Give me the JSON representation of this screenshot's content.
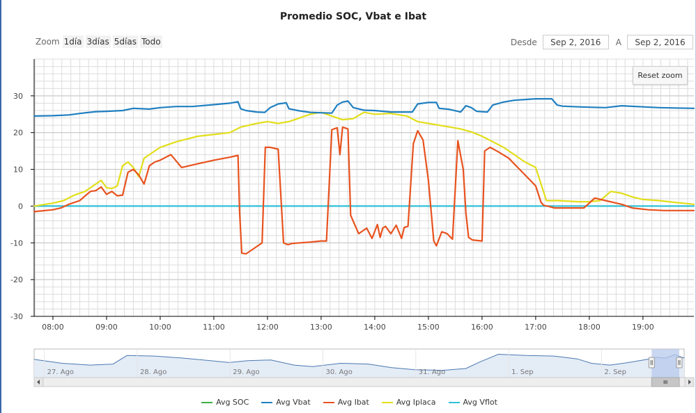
{
  "chart_data": {
    "type": "line",
    "title": "Promedio SOC, Vbat e Ibat",
    "xlabel": "",
    "ylabel": "",
    "x_ticks": [
      "08:00",
      "09:00",
      "10:00",
      "11:00",
      "12:00",
      "13:00",
      "14:00",
      "15:00",
      "16:00",
      "17:00",
      "18:00",
      "19:00"
    ],
    "x_tick_values": [
      8,
      9,
      10,
      11,
      12,
      13,
      14,
      15,
      16,
      17,
      18,
      19
    ],
    "xlim": [
      7.65,
      19.95
    ],
    "ylim": [
      -30,
      40
    ],
    "y_ticks": [
      -30,
      -20,
      -10,
      0,
      10,
      20,
      30
    ],
    "grid": true,
    "legend_position": "bottom",
    "series": [
      {
        "name": "Avg SOC",
        "color": "#3cb043",
        "x": [],
        "y": []
      },
      {
        "name": "Avg Vbat",
        "color": "#1f7fc0",
        "x": [
          7.65,
          8.0,
          8.3,
          8.5,
          8.8,
          9.0,
          9.3,
          9.5,
          9.8,
          10.0,
          10.3,
          10.6,
          11.0,
          11.3,
          11.45,
          11.5,
          11.6,
          11.8,
          11.95,
          12.05,
          12.2,
          12.35,
          12.4,
          12.6,
          12.8,
          13.0,
          13.2,
          13.3,
          13.4,
          13.5,
          13.6,
          13.8,
          14.0,
          14.3,
          14.5,
          14.7,
          14.8,
          15.0,
          15.15,
          15.2,
          15.4,
          15.6,
          15.7,
          15.8,
          15.9,
          16.1,
          16.2,
          16.4,
          16.6,
          17.0,
          17.3,
          17.4,
          17.5,
          17.8,
          18.0,
          18.3,
          18.6,
          19.0,
          19.3,
          19.6,
          19.95
        ],
        "y": [
          24.5,
          24.6,
          24.8,
          25.2,
          25.7,
          25.8,
          26,
          26.6,
          26.4,
          26.8,
          27.1,
          27.1,
          27.6,
          28,
          28.4,
          26.5,
          26,
          25.6,
          25.5,
          26.8,
          27.8,
          28.1,
          26.5,
          25.9,
          25.5,
          25.4,
          25.3,
          27.5,
          28.3,
          28.6,
          26.8,
          26.1,
          26,
          25.6,
          25.6,
          25.6,
          27.8,
          28.2,
          28.2,
          26.6,
          26.3,
          25.6,
          27.3,
          26.8,
          25.8,
          25.6,
          27.5,
          28.3,
          28.8,
          29.2,
          29.2,
          27.5,
          27.2,
          27,
          26.9,
          26.8,
          27.3,
          27,
          26.8,
          26.7,
          26.6
        ]
      },
      {
        "name": "Avg Ibat",
        "color": "#e8521e",
        "x": [
          7.65,
          8.0,
          8.15,
          8.3,
          8.5,
          8.7,
          8.8,
          8.9,
          9.0,
          9.1,
          9.2,
          9.3,
          9.4,
          9.5,
          9.6,
          9.7,
          9.8,
          9.9,
          10.0,
          10.2,
          10.4,
          10.7,
          11.0,
          11.3,
          11.45,
          11.48,
          11.52,
          11.6,
          11.8,
          11.9,
          11.96,
          12.05,
          12.2,
          12.3,
          12.38,
          12.45,
          12.6,
          12.8,
          13.0,
          13.1,
          13.2,
          13.3,
          13.35,
          13.4,
          13.5,
          13.55,
          13.7,
          13.85,
          13.95,
          14.05,
          14.1,
          14.15,
          14.2,
          14.3,
          14.4,
          14.5,
          14.55,
          14.62,
          14.72,
          14.8,
          14.9,
          15.0,
          15.1,
          15.15,
          15.25,
          15.35,
          15.45,
          15.55,
          15.65,
          15.7,
          15.75,
          15.82,
          16.0,
          16.05,
          16.15,
          16.3,
          16.5,
          16.7,
          16.9,
          17.0,
          17.1,
          17.15,
          17.22,
          17.35,
          17.6,
          17.9,
          18.1,
          18.3,
          18.6,
          18.8,
          19.1,
          19.4,
          19.6,
          19.95
        ],
        "y": [
          -1.5,
          -1,
          -0.5,
          0.5,
          1.5,
          4,
          4.2,
          5.2,
          3.2,
          4,
          2.8,
          3,
          9.2,
          10,
          8.5,
          6,
          11,
          12,
          12.5,
          14,
          10.5,
          11.5,
          12.5,
          13.3,
          13.8,
          -1.5,
          -12.8,
          -13,
          -11,
          -10,
          16,
          16,
          15.5,
          -10,
          -10.5,
          -10.2,
          -10,
          -9.8,
          -9.5,
          -9.5,
          20.8,
          21.3,
          14,
          21.5,
          21,
          -2.5,
          -7.5,
          -6,
          -8.8,
          -5,
          -8.5,
          -6,
          -5.5,
          -7.5,
          -5.2,
          -8.8,
          -5.8,
          -5.5,
          17,
          20.5,
          18,
          7,
          -9.5,
          -10.8,
          -7,
          -7.5,
          -9,
          17.8,
          10,
          -2,
          -8.5,
          -9.2,
          -9.5,
          15,
          16,
          14.8,
          13,
          10,
          7,
          5.5,
          1,
          0.2,
          0,
          -0.5,
          -0.5,
          -0.5,
          2.2,
          1.5,
          0.5,
          -0.5,
          -1,
          -1.2,
          -1.2,
          -1.2
        ]
      },
      {
        "name": "Avg Iplaca",
        "color": "#e2de1a",
        "x": [
          7.65,
          8.0,
          8.2,
          8.4,
          8.6,
          8.8,
          8.9,
          9.0,
          9.1,
          9.2,
          9.3,
          9.4,
          9.5,
          9.6,
          9.7,
          9.8,
          9.9,
          10.0,
          10.3,
          10.7,
          11.0,
          11.3,
          11.5,
          11.8,
          12.0,
          12.2,
          12.4,
          12.6,
          12.8,
          13.0,
          13.2,
          13.4,
          13.6,
          13.8,
          14.0,
          14.3,
          14.6,
          14.8,
          15.0,
          15.2,
          15.6,
          15.8,
          16.0,
          16.2,
          16.4,
          16.6,
          16.8,
          17.0,
          17.2,
          17.4,
          17.8,
          18.0,
          18.2,
          18.4,
          18.6,
          18.8,
          19.0,
          19.3,
          19.6,
          19.95
        ],
        "y": [
          0,
          0.8,
          1.5,
          3,
          4,
          6,
          7,
          5,
          4.8,
          5.5,
          11,
          12,
          10.5,
          8,
          13,
          14,
          15,
          16,
          17.5,
          19,
          19.5,
          20,
          21.5,
          22.5,
          23,
          22.5,
          23,
          24,
          25,
          25.5,
          24.5,
          23.5,
          23.8,
          25.5,
          25,
          25.2,
          24.5,
          23,
          22.5,
          22,
          21,
          20.2,
          19,
          17.5,
          16,
          14,
          12,
          10.5,
          1.5,
          1.5,
          1.2,
          1.2,
          1.5,
          4,
          3.5,
          2.5,
          1.8,
          1.5,
          1,
          0.5
        ]
      },
      {
        "name": "Avg Vflot",
        "color": "#2fc0d8",
        "x": [
          7.65,
          19.95
        ],
        "y": [
          0,
          0
        ]
      }
    ]
  },
  "toolbar": {
    "zoom_label": "Zoom",
    "zoom_buttons": [
      "1día",
      "3días",
      "5días",
      "Todo"
    ],
    "from_label": "Desde",
    "from_value": "Sep 2, 2016",
    "to_label": "A",
    "to_value": "Sep 2, 2016",
    "reset_zoom": "Reset zoom"
  },
  "navigator": {
    "labels": [
      "27. Ago",
      "28. Ago",
      "29. Ago",
      "30. Ago",
      "31. Ago",
      "1. Sep",
      "2. Sep"
    ],
    "label_values": [
      0.2,
      1.2,
      2.2,
      3.2,
      4.2,
      5.2,
      6.2
    ],
    "xlim": [
      0,
      7.0
    ],
    "selected_range": [
      6.65,
      7.0
    ],
    "vbat_profile": {
      "x": [
        0,
        0.3,
        0.6,
        0.85,
        1.0,
        1.3,
        1.6,
        1.9,
        2.1,
        2.3,
        2.55,
        2.8,
        3.0,
        3.3,
        3.6,
        3.85,
        4.1,
        4.4,
        4.65,
        4.8,
        5.0,
        5.3,
        5.6,
        5.85,
        6.0,
        6.2,
        6.4,
        6.6,
        6.7,
        6.8,
        6.9,
        7.0
      ],
      "y": [
        27,
        25.5,
        24.8,
        25.2,
        28.5,
        28.3,
        27.5,
        26.5,
        25.8,
        26.5,
        26.8,
        24.8,
        24.2,
        25.5,
        25.2,
        23.8,
        23,
        22.8,
        23.5,
        26,
        29,
        28.5,
        28.3,
        27.2,
        25.5,
        24.8,
        25.8,
        27,
        27.8,
        27.5,
        28.8,
        27.5
      ]
    },
    "ylim": [
      20,
      31
    ]
  },
  "colors": {
    "plot_border": "#000000",
    "grid": "#dcdcdc",
    "navigator_fill": "#e4ecf6",
    "navigator_line": "#4a78b0",
    "mask": "#b7c9ec",
    "scrollbar_bg": "#eeeeee",
    "scrollbar_thumb": "#c6c6c6"
  }
}
